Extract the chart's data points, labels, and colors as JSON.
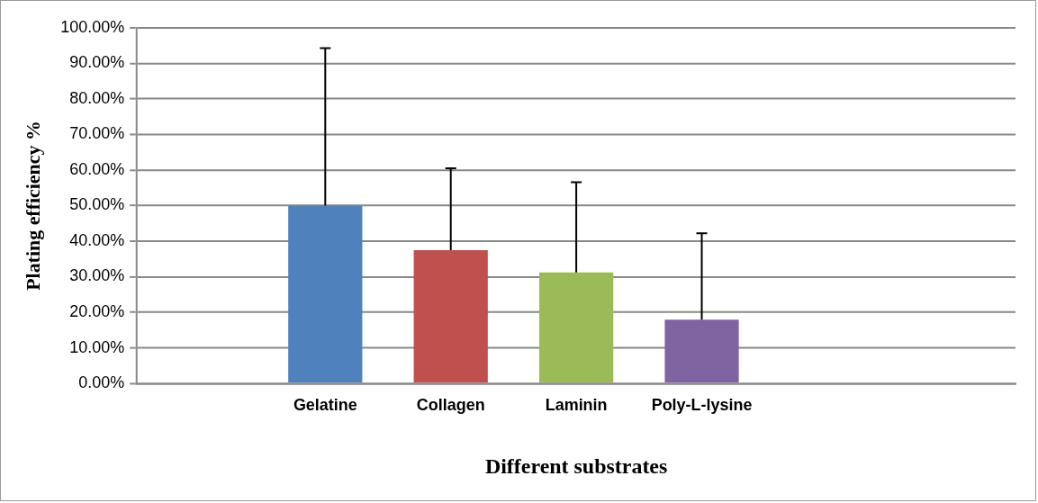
{
  "chart_data": {
    "type": "bar",
    "xlabel": "Different substrates",
    "ylabel": "Plating efficiency %",
    "categories": [
      null,
      "Gelatine",
      "Collagen",
      "Laminin",
      "Poly-L-lysine",
      null,
      null
    ],
    "values": [
      null,
      50.0,
      37.5,
      31.2,
      17.9,
      null,
      null
    ],
    "colors": [
      "#4f81bd",
      "#4f81bd",
      "#c0504d",
      "#9bbb59",
      "#8064a2",
      "#4f81bd",
      "#4f81bd"
    ],
    "errors": [
      null,
      [
        50.0,
        94.3
      ],
      [
        37.5,
        60.5
      ],
      [
        31.2,
        56.6
      ],
      [
        17.9,
        42.2
      ],
      null,
      null
    ],
    "ylim": [
      0,
      100
    ],
    "yticks": [
      {
        "value": 0,
        "label": "0.00%"
      },
      {
        "value": 10,
        "label": "10.00%"
      },
      {
        "value": 20,
        "label": "20.00%"
      },
      {
        "value": 30,
        "label": "30.00%"
      },
      {
        "value": 40,
        "label": "40.00%"
      },
      {
        "value": 50,
        "label": "50.00%"
      },
      {
        "value": 60,
        "label": "60.00%"
      },
      {
        "value": 70,
        "label": "70.00%"
      },
      {
        "value": 80,
        "label": "80.00%"
      },
      {
        "value": 90,
        "label": "90.00%"
      },
      {
        "value": 100,
        "label": "100.00%"
      }
    ],
    "grid": "y",
    "legend": false
  }
}
